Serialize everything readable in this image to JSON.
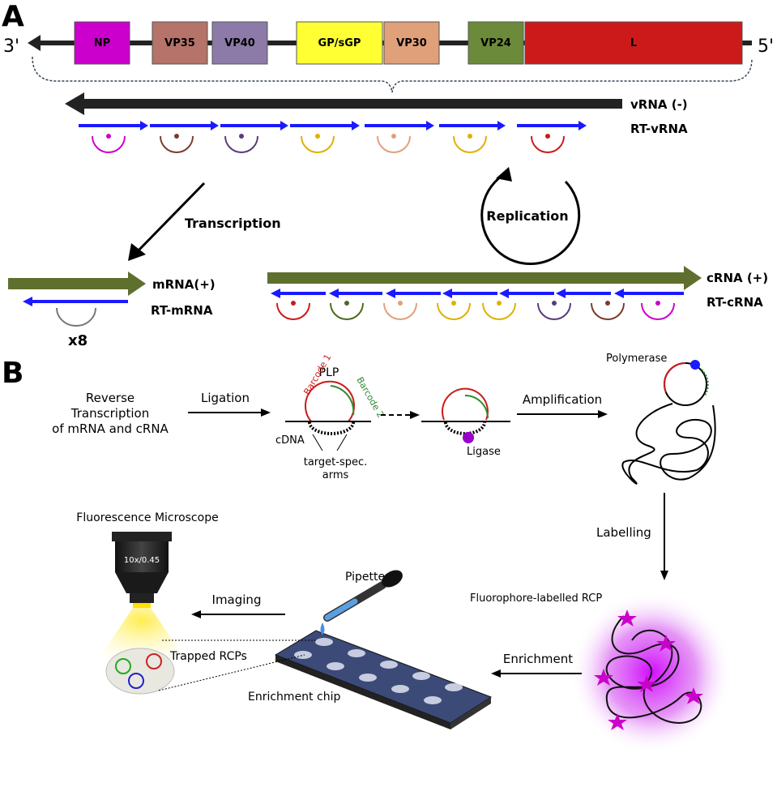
{
  "panels": {
    "a": "A",
    "b": "B"
  },
  "genome": {
    "end_left": "3'",
    "end_right": "5'",
    "genes": [
      "NP",
      "VP35",
      "VP40",
      "GP/sGP",
      "VP30",
      "VP24",
      "L"
    ]
  },
  "panel_a": {
    "vrna_label": "vRNA (-)",
    "rt_vrna_label": "RT-vRNA",
    "transcription_label": "Transcription",
    "replication_label": "Replication",
    "mrna_label": "mRNA(+)",
    "rt_mrna_label": "RT-mRNA",
    "multiplier": "x8",
    "crna_label": "cRNA (+)",
    "rt_crna_label": "RT-cRNA"
  },
  "panel_b": {
    "reverse_transcription": [
      "Reverse",
      "Transcription",
      "of mRNA and cRNA"
    ],
    "ligation": "Ligation",
    "plp": "PLP",
    "barcode1": "Barcode 1",
    "barcode2": "Barcode 2",
    "cdna": "cDNA",
    "target_arms": [
      "target-spec.",
      "arms"
    ],
    "ligase": "Ligase",
    "amplification": "Amplification",
    "polymerase": "Polymerase",
    "labelling": "Labelling",
    "fluorophore_rcp": "Fluorophore-labelled RCP",
    "enrichment": "Enrichment",
    "enrichment_chip": "Enrichment chip",
    "pipette": "Pipette",
    "imaging": "Imaging",
    "trapped_rcps": "Trapped RCPs",
    "microscope": "Fluorescence Microscope",
    "objective_label": "10x/0.45"
  },
  "colors": {
    "NP": "#cc00cc",
    "VP35": "#b5736a",
    "VP40": "#8c7aa8",
    "GP": "#ffff33",
    "VP30": "#e0a07a",
    "VP24": "#6b8b3a",
    "L": "#cc1a1a",
    "olive": "#5f6f2e",
    "blue": "#1a1aff"
  }
}
